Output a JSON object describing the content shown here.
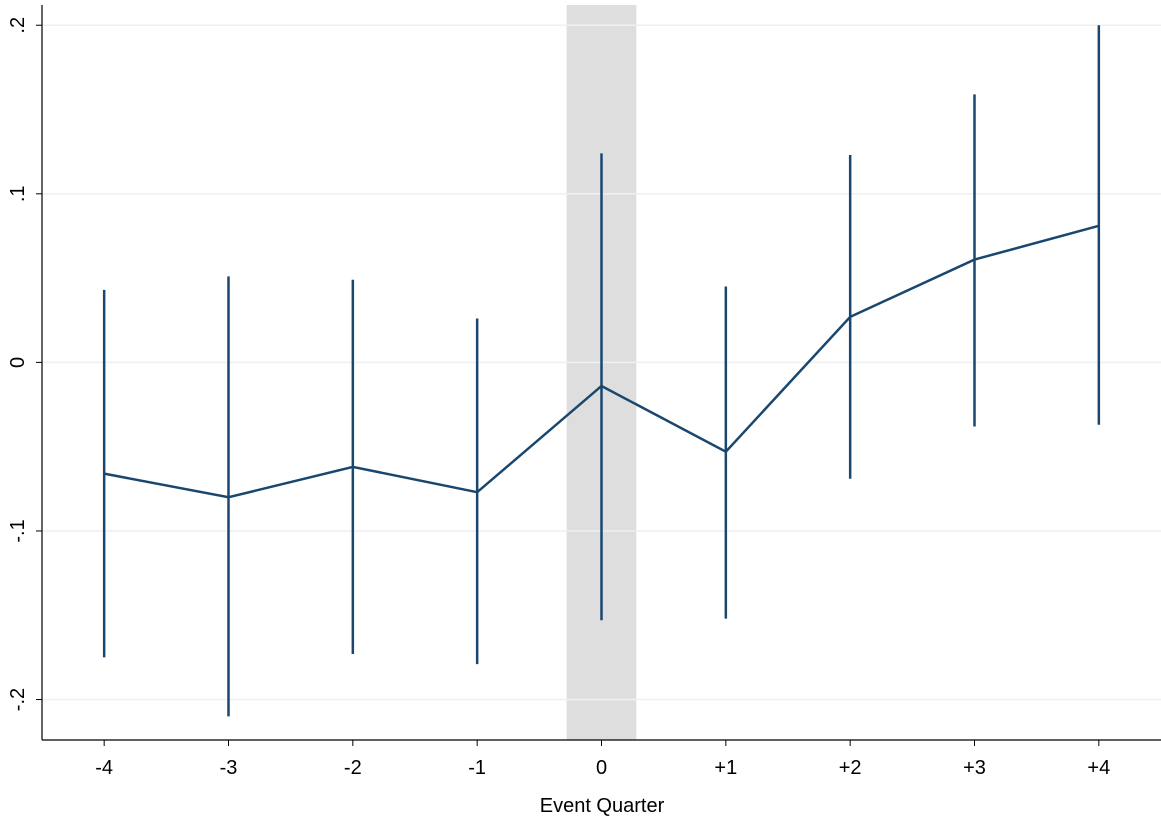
{
  "chart_data": {
    "type": "line_errorbar",
    "xlabel": "Event Quarter",
    "x": [
      -4,
      -3,
      -2,
      -1,
      0,
      1,
      2,
      3,
      4
    ],
    "series": [
      {
        "color": "#1a476f",
        "values": [
          -0.066,
          -0.08,
          -0.062,
          -0.077,
          -0.014,
          -0.053,
          0.027,
          0.061,
          0.081
        ],
        "lower": [
          -0.175,
          -0.21,
          -0.173,
          -0.179,
          -0.153,
          -0.152,
          -0.069,
          -0.038,
          -0.037
        ],
        "upper": [
          0.043,
          0.051,
          0.049,
          0.026,
          0.124,
          0.045,
          0.123,
          0.159,
          0.2
        ]
      }
    ],
    "xlim": [
      -4.5,
      4.5
    ],
    "ylim": [
      -0.224,
      0.212
    ],
    "xticks": [
      -4,
      -3,
      -2,
      -1,
      0,
      {
        "value": 1,
        "label": "+1"
      },
      {
        "value": 2,
        "label": "+2"
      },
      {
        "value": 3,
        "label": "+3"
      },
      {
        "value": 4,
        "label": "+4"
      }
    ],
    "yticks": [
      {
        "value": -0.2,
        "label": "-.2"
      },
      {
        "value": -0.1,
        "label": "-.1"
      },
      0,
      {
        "value": 0.1,
        "label": ".1"
      },
      {
        "value": 0.2,
        "label": ".2"
      }
    ],
    "grid": true,
    "shaded_region": {
      "xmin": -0.28,
      "xmax": 0.28,
      "color": "#dedede"
    }
  }
}
